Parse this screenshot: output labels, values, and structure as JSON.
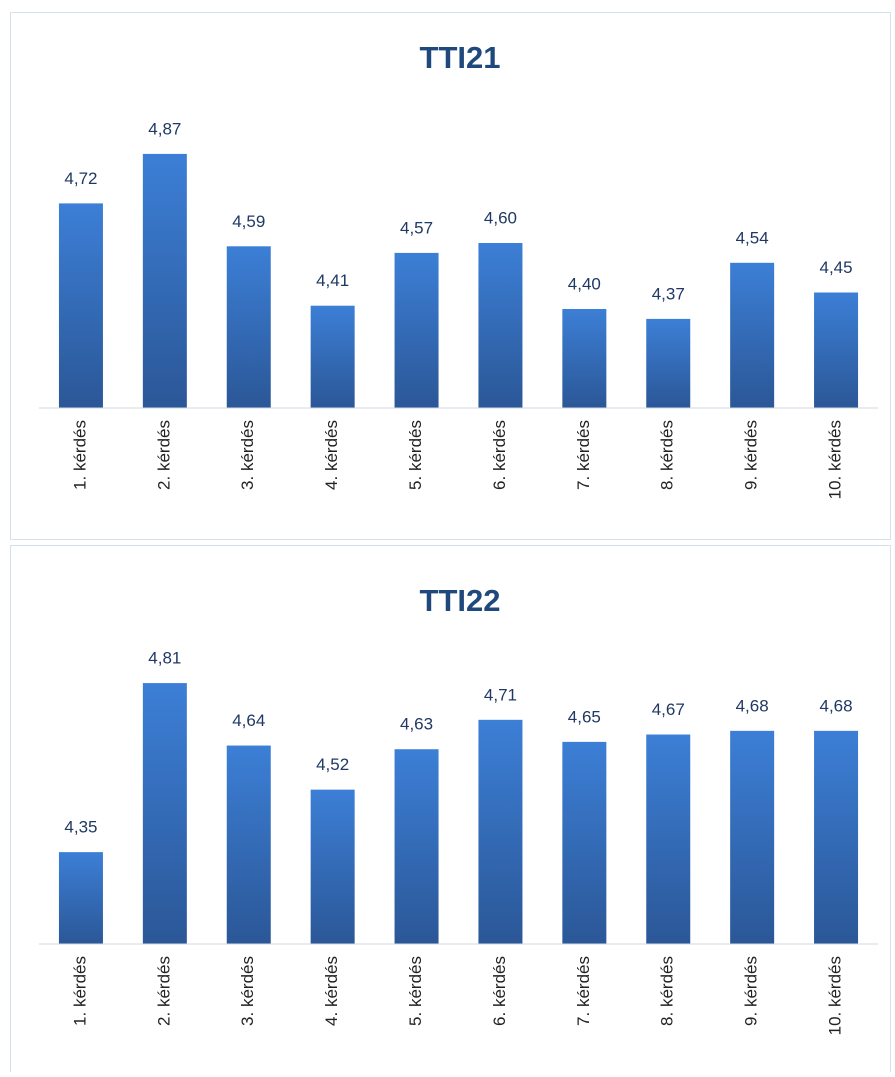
{
  "chart_data": [
    {
      "type": "bar",
      "title": "TTI21",
      "categories": [
        "1. kérdés",
        "2. kérdés",
        "3. kérdés",
        "4. kérdés",
        "5. kérdés",
        "6. kérdés",
        "7. kérdés",
        "8. kérdés",
        "9. kérdés",
        "10. kérdés"
      ],
      "values": [
        4.72,
        4.87,
        4.59,
        4.41,
        4.57,
        4.6,
        4.4,
        4.37,
        4.54,
        4.45
      ],
      "value_labels": [
        "4,72",
        "4,87",
        "4,59",
        "4,41",
        "4,57",
        "4,60",
        "4,40",
        "4,37",
        "4,54",
        "4,45"
      ],
      "color": "#3570bd",
      "ylim": [
        4.1,
        5.0
      ]
    },
    {
      "type": "bar",
      "title": "TTI22",
      "categories": [
        "1. kérdés",
        "2. kérdés",
        "3. kérdés",
        "4. kérdés",
        "5. kérdés",
        "6. kérdés",
        "7. kérdés",
        "8. kérdés",
        "9. kérdés",
        "10. kérdés"
      ],
      "values": [
        4.35,
        4.81,
        4.64,
        4.52,
        4.63,
        4.71,
        4.65,
        4.67,
        4.68,
        4.68
      ],
      "value_labels": [
        "4,35",
        "4,81",
        "4,64",
        "4,52",
        "4,63",
        "4,71",
        "4,65",
        "4,67",
        "4,68",
        "4,68"
      ],
      "color": "#3570bd",
      "ylim": [
        4.1,
        4.9
      ]
    }
  ]
}
